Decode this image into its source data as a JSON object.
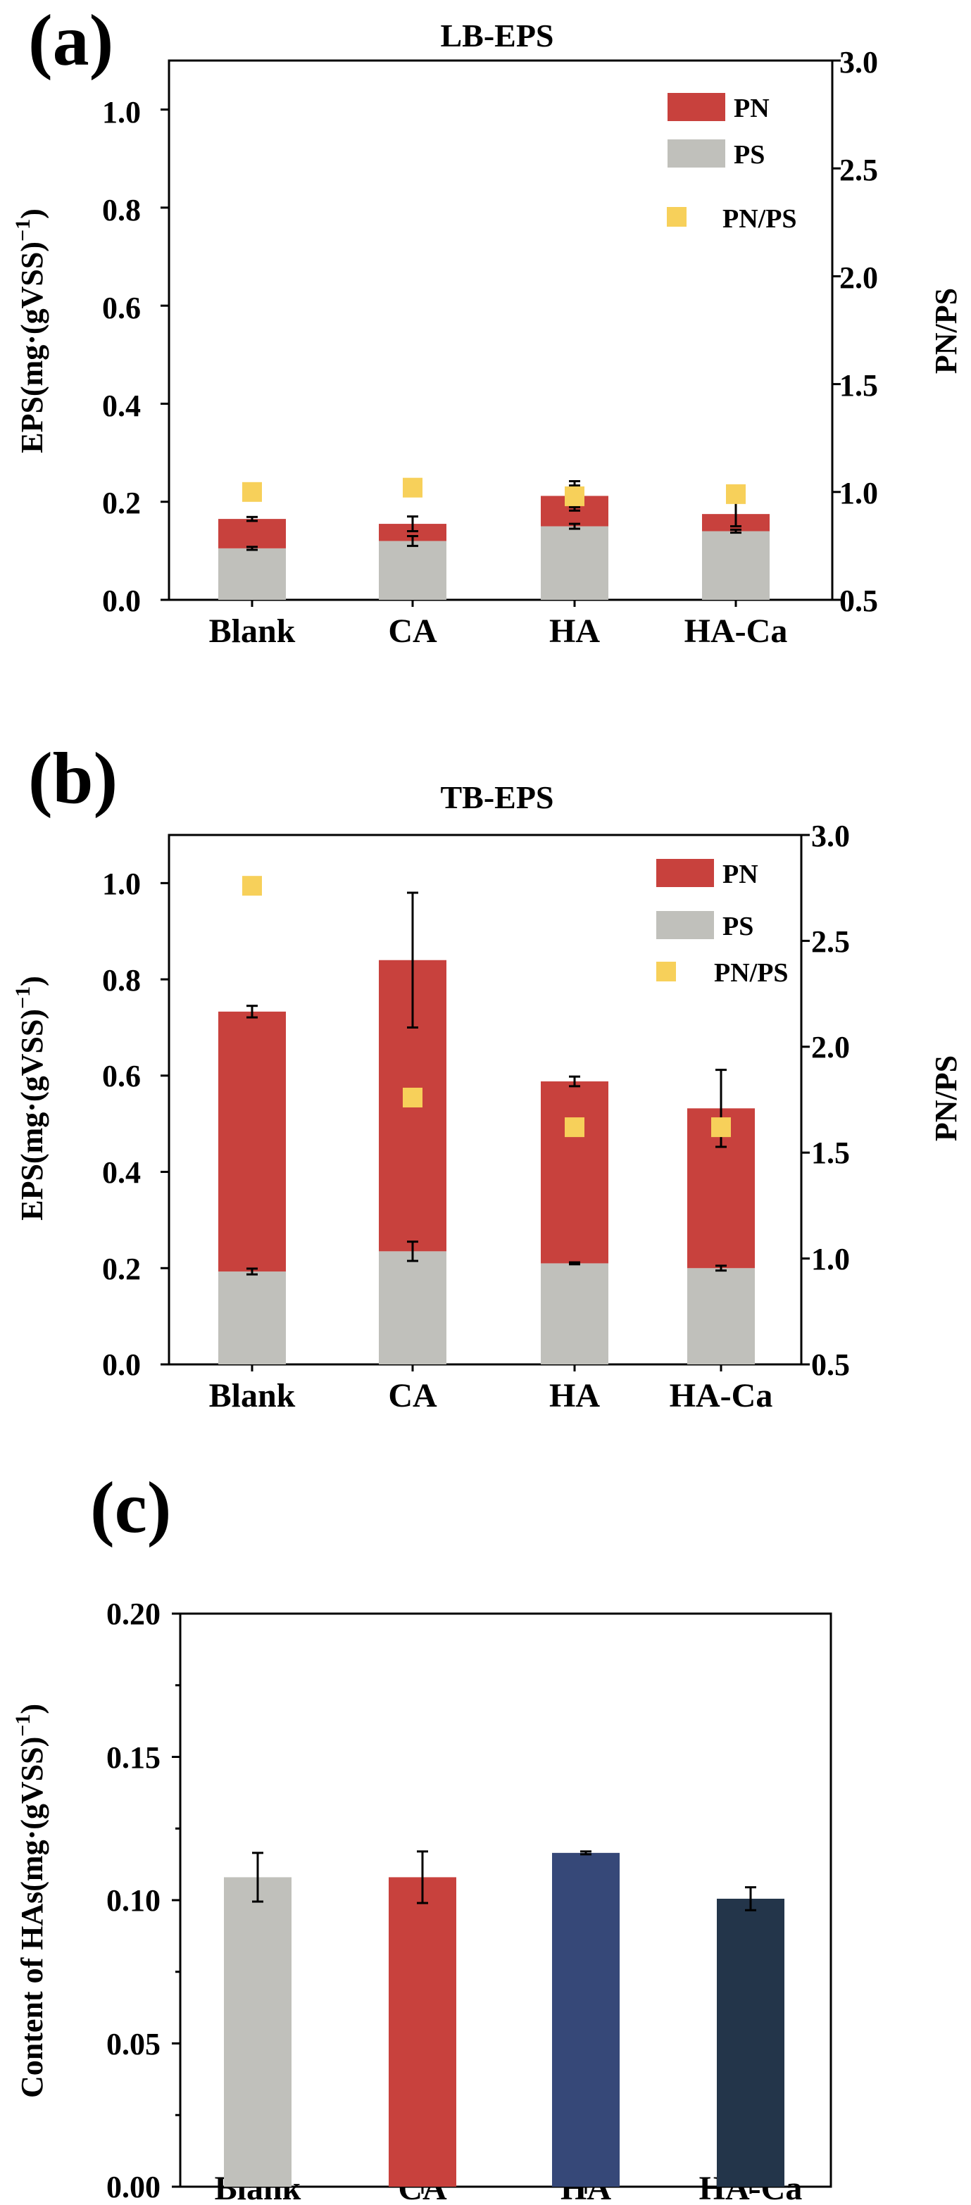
{
  "colors": {
    "pn": "#c8413d",
    "ps": "#c0c0bb",
    "ratio": "#f7d05a",
    "ha": "#364878",
    "haca": "#23354a"
  },
  "chart_data": [
    {
      "id": "a",
      "type": "bar",
      "stacked": true,
      "panel_label": "(a)",
      "title": "LB-EPS",
      "categories": [
        "Blank",
        "CA",
        "HA",
        "HA-Ca"
      ],
      "ylabel": "EPS(mg·(gVSS)",
      "ylabel_sup": "−1",
      "ylabel_close": ")",
      "ylim": [
        0,
        1.1
      ],
      "yticks": [
        "0.0",
        "0.2",
        "0.4",
        "0.6",
        "0.8",
        "1.0"
      ],
      "y2label": "PN/PS",
      "y2lim": [
        0.5,
        3.0
      ],
      "y2ticks": [
        "0.5",
        "1.0",
        "1.5",
        "2.0",
        "2.5",
        "3.0"
      ],
      "legend": [
        "PN",
        "PS",
        "PN/PS"
      ],
      "series": [
        {
          "name": "PS",
          "values": [
            0.105,
            0.12,
            0.15,
            0.14
          ],
          "errors": [
            0.003,
            0.01,
            0.005,
            0.003
          ]
        },
        {
          "name": "PN",
          "values": [
            0.06,
            0.035,
            0.062,
            0.035
          ],
          "errors": [
            0.004,
            0.015,
            0.03,
            0.025
          ]
        },
        {
          "name": "PN/PS",
          "axis": "right",
          "values": [
            1.0,
            1.02,
            0.98,
            0.99
          ],
          "errors": [
            0,
            0,
            0.05,
            0
          ]
        }
      ]
    },
    {
      "id": "b",
      "type": "bar",
      "stacked": true,
      "panel_label": "(b)",
      "title": "TB-EPS",
      "categories": [
        "Blank",
        "CA",
        "HA",
        "HA-Ca"
      ],
      "ylabel": "EPS(mg·(gVSS)",
      "ylabel_sup": "−1",
      "ylabel_close": ")",
      "ylim": [
        0,
        1.1
      ],
      "yticks": [
        "0.0",
        "0.2",
        "0.4",
        "0.6",
        "0.8",
        "1.0"
      ],
      "y2label": "PN/PS",
      "y2lim": [
        0.5,
        3.0
      ],
      "y2ticks": [
        "0.5",
        "1.0",
        "1.5",
        "2.0",
        "2.5",
        "3.0"
      ],
      "legend": [
        "PN",
        "PS",
        "PN/PS"
      ],
      "series": [
        {
          "name": "PS",
          "values": [
            0.193,
            0.235,
            0.21,
            0.2
          ],
          "errors": [
            0.006,
            0.02,
            0.002,
            0.005
          ]
        },
        {
          "name": "PN",
          "values": [
            0.54,
            0.605,
            0.378,
            0.332
          ],
          "errors": [
            0.012,
            0.14,
            0.01,
            0.08
          ]
        },
        {
          "name": "PN/PS",
          "axis": "right",
          "values": [
            2.76,
            1.76,
            1.62,
            1.62
          ],
          "errors": [
            0,
            0,
            0,
            0
          ]
        }
      ]
    },
    {
      "id": "c",
      "type": "bar",
      "stacked": false,
      "panel_label": "(c)",
      "title": "",
      "categories": [
        "Blank",
        "CA",
        "HA",
        "HA-Ca"
      ],
      "ylabel": "Content of HAs(mg·(gVSS)",
      "ylabel_sup": "−1",
      "ylabel_close": ")",
      "ylim": [
        0,
        0.2
      ],
      "yticks": [
        "0.00",
        "0.05",
        "0.10",
        "0.15",
        "0.20"
      ],
      "series": [
        {
          "name": "HAs",
          "values": [
            0.108,
            0.108,
            0.1165,
            0.1005
          ],
          "errors": [
            0.0085,
            0.009,
            0.0005,
            0.004
          ],
          "bar_colors": [
            "ps",
            "pn",
            "ha",
            "haca"
          ]
        }
      ]
    }
  ]
}
